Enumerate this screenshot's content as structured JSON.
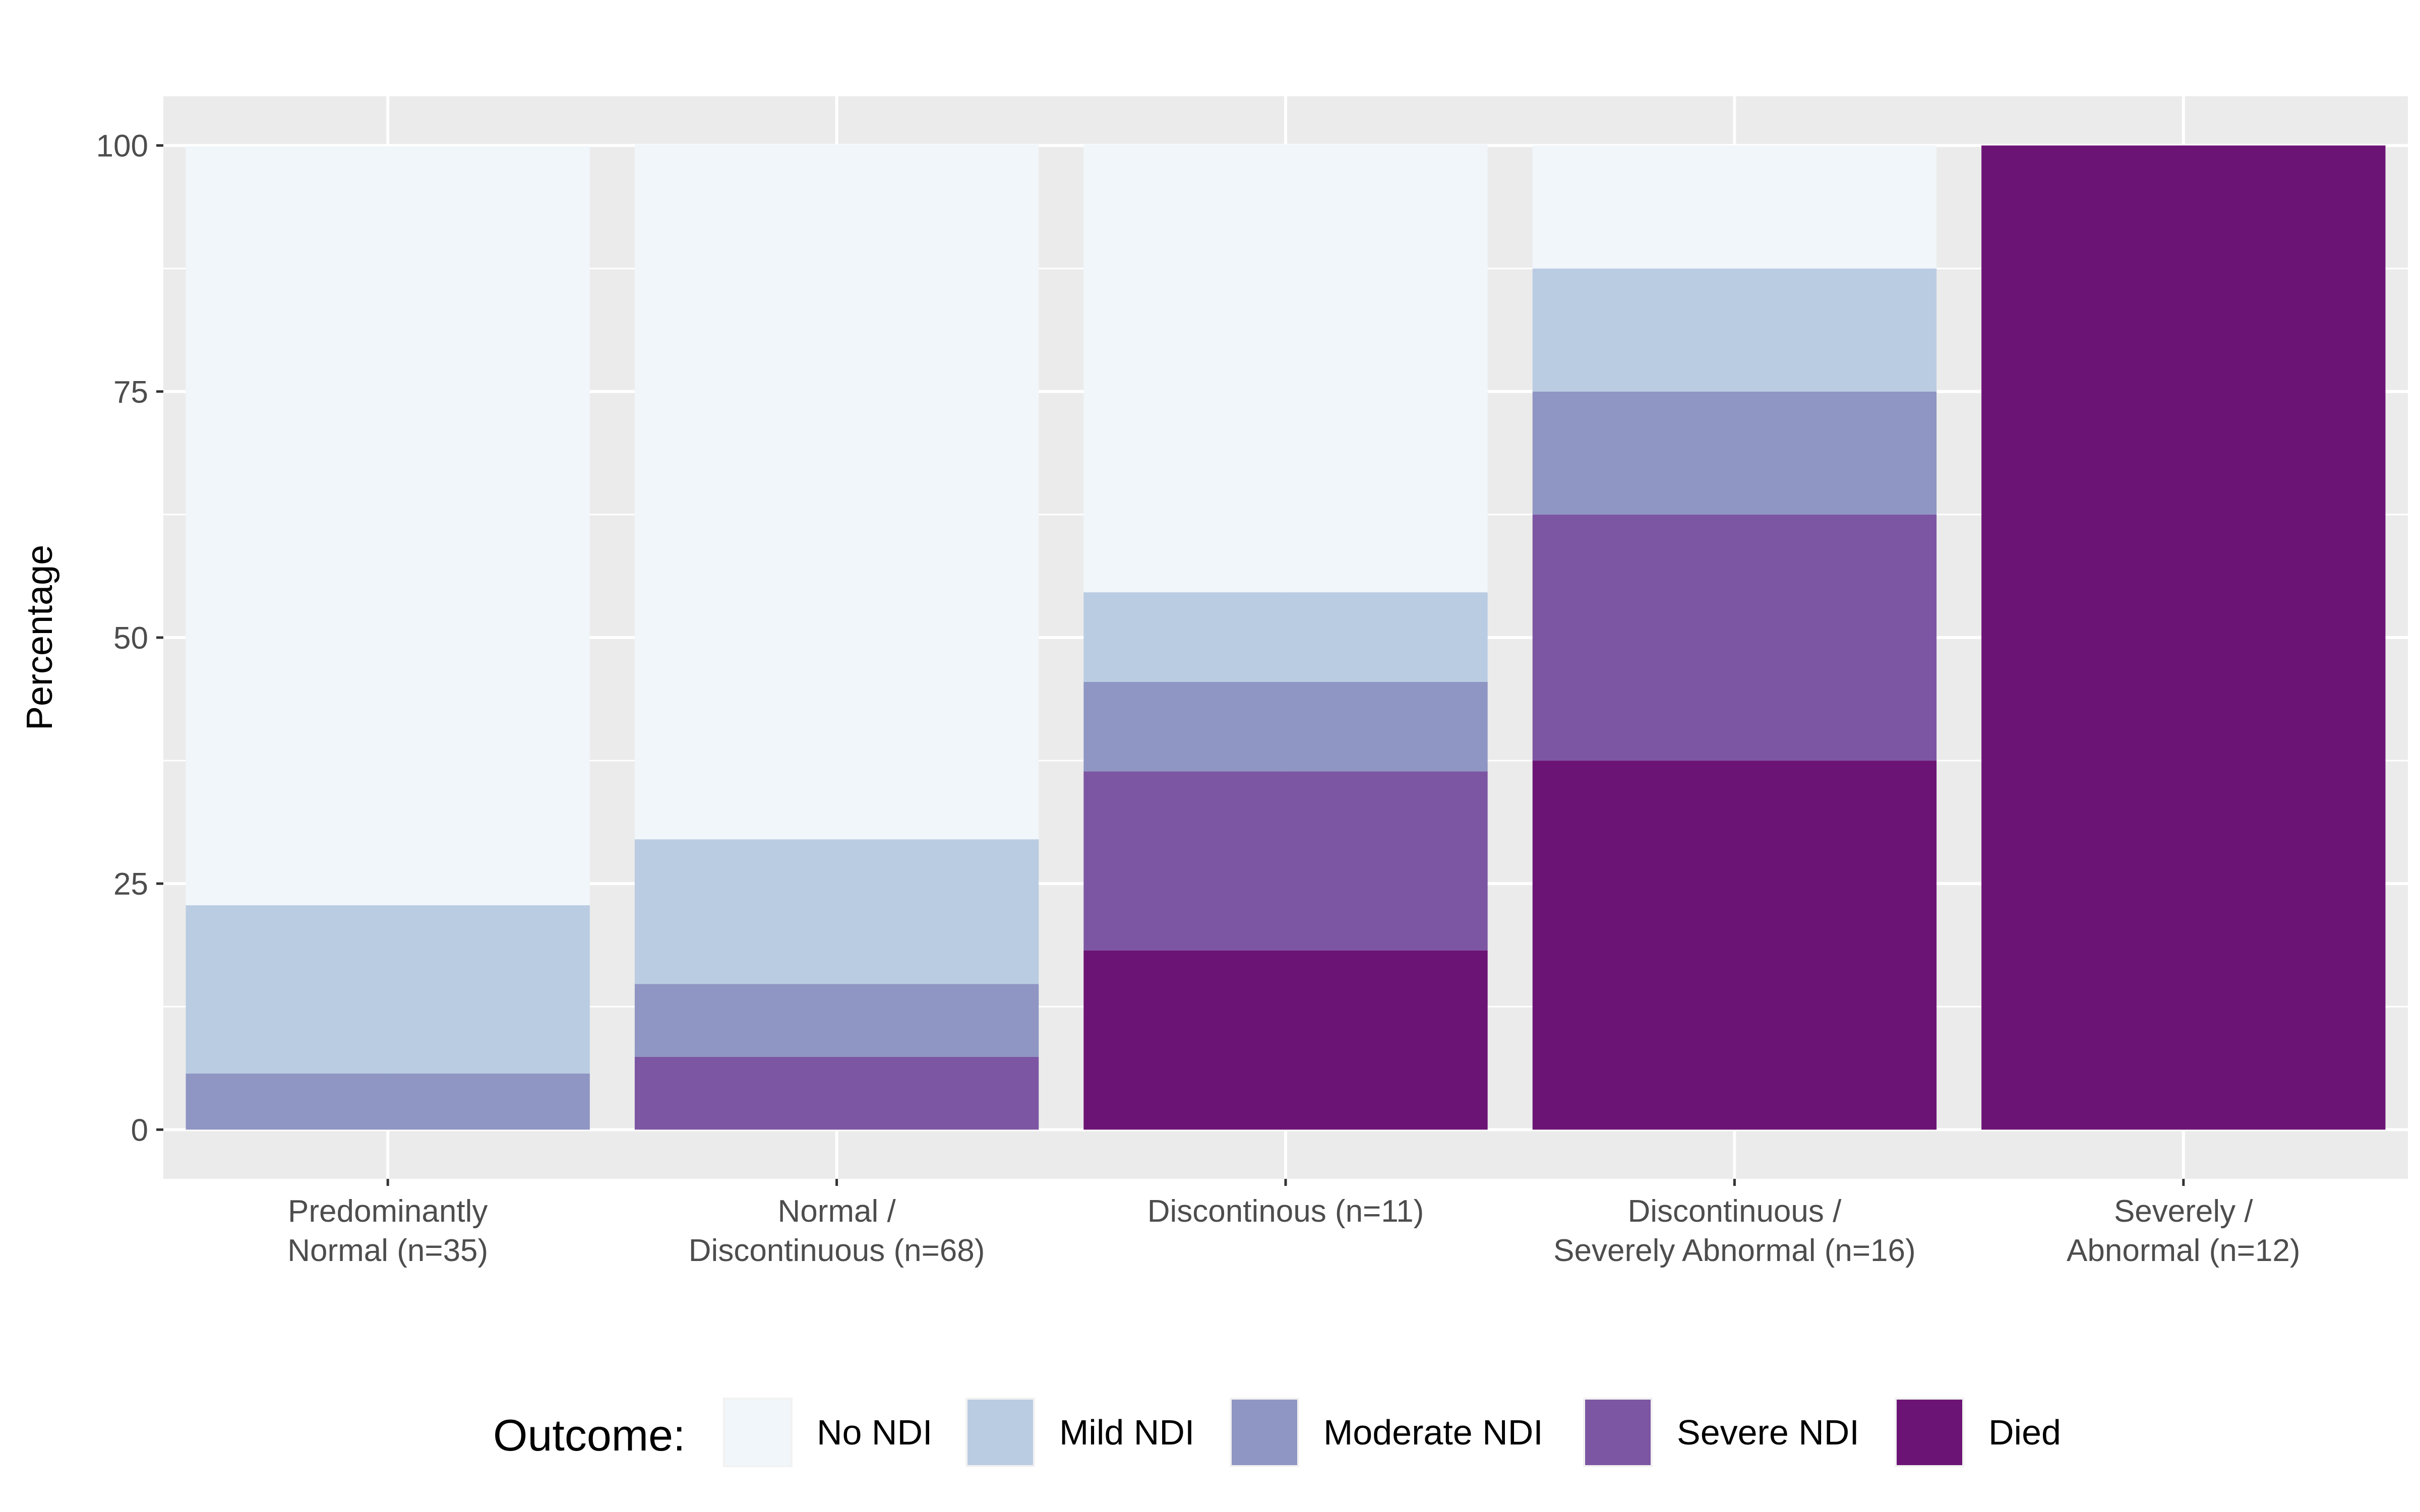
{
  "chart_data": {
    "type": "bar",
    "stacked": true,
    "ylabel": "Percentage",
    "ylim": [
      -5,
      105
    ],
    "yticks": [
      0,
      25,
      50,
      75,
      100
    ],
    "grid": true,
    "legend_position": "bottom",
    "legend_title": "Outcome:",
    "categories": [
      [
        "Predominantly",
        "Normal (n=35)"
      ],
      [
        "Normal /",
        "Discontinuous  (n=68)"
      ],
      [
        "Discontinous (n=11)"
      ],
      [
        "Discontinuous /",
        "Severely Abnormal (n=16)"
      ],
      [
        "Severely /",
        "Abnormal (n=12)"
      ]
    ],
    "series": [
      {
        "name": "No NDI",
        "color": "#f0f6fa",
        "values": [
          77.1,
          70.6,
          45.5,
          12.5,
          0
        ]
      },
      {
        "name": "Mild NDI",
        "color": "#bacce2",
        "values": [
          17.1,
          14.7,
          9.1,
          12.5,
          0
        ]
      },
      {
        "name": "Moderate NDI",
        "color": "#8f96c3",
        "values": [
          5.7,
          7.4,
          9.1,
          12.5,
          0
        ]
      },
      {
        "name": "Severe NDI",
        "color": "#7d56a3",
        "values": [
          0,
          7.4,
          18.2,
          25.0,
          0
        ]
      },
      {
        "name": "Died",
        "color": "#6c1475",
        "values": [
          0,
          0,
          18.2,
          37.5,
          100
        ]
      }
    ]
  }
}
